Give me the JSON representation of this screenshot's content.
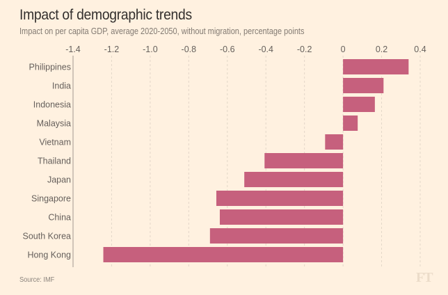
{
  "title": "Impact of demographic trends",
  "subtitle": "Impact on per capita GDP, average 2020-2050, without migration, percentage points",
  "source": "Source: IMF",
  "logo": "FT",
  "colors": {
    "background": "#fff1e0",
    "bar": "#c6607d",
    "gridline": "#e3d6c8",
    "axis": "#a09890",
    "text": "#66605c"
  },
  "chart_data": {
    "type": "bar",
    "orientation": "horizontal",
    "title": "Impact of demographic trends",
    "subtitle": "Impact on per capita GDP, average 2020-2050, without migration, percentage points",
    "xlabel": "",
    "ylabel": "",
    "xlim": [
      -1.4,
      0.4
    ],
    "xticks": [
      -1.4,
      -1.2,
      -1.0,
      -0.8,
      -0.6,
      -0.4,
      -0.2,
      0,
      0.2,
      0.4
    ],
    "xtick_labels": [
      "-1.4",
      "-1.2",
      "-1.0",
      "-0.8",
      "-0.6",
      "-0.4",
      "-0.2",
      "0",
      "0.2",
      "0.4"
    ],
    "xaxis_position": "top",
    "grid": true,
    "categories": [
      "Philippines",
      "India",
      "Indonesia",
      "Malaysia",
      "Vietnam",
      "Thailand",
      "Japan",
      "Singapore",
      "China",
      "South Korea",
      "Hong Kong"
    ],
    "values": [
      0.34,
      0.21,
      0.165,
      0.076,
      -0.093,
      -0.407,
      -0.512,
      -0.657,
      -0.639,
      -0.69,
      -1.243
    ],
    "source": "Source: IMF"
  }
}
